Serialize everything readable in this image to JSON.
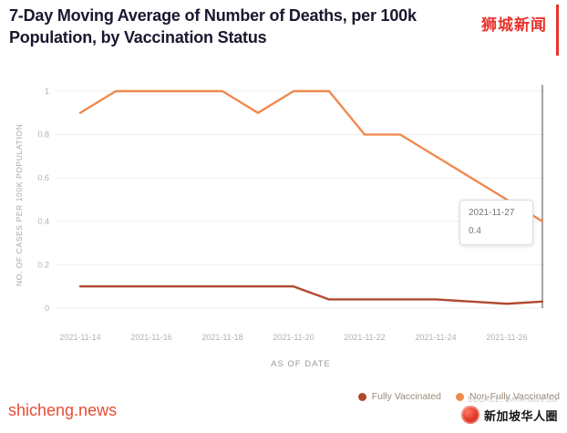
{
  "title": "7-Day Moving Average of Number of Deaths, per 100k Population, by Vaccination Status",
  "watermark": "狮城新闻",
  "chart_data": {
    "type": "line",
    "x": [
      "2021-11-14",
      "2021-11-15",
      "2021-11-16",
      "2021-11-17",
      "2021-11-18",
      "2021-11-19",
      "2021-11-20",
      "2021-11-21",
      "2021-11-22",
      "2021-11-23",
      "2021-11-24",
      "2021-11-25",
      "2021-11-26",
      "2021-11-27"
    ],
    "x_tick_labels": [
      "2021-11-14",
      "2021-11-16",
      "2021-11-18",
      "2021-11-20",
      "2021-11-22",
      "2021-11-24",
      "2021-11-26"
    ],
    "series": [
      {
        "name": "Fully Vaccinated",
        "color": "#b04a2e",
        "values": [
          0.1,
          0.1,
          0.1,
          0.1,
          0.1,
          0.1,
          0.1,
          0.04,
          0.04,
          0.04,
          0.04,
          0.03,
          0.02,
          0.03
        ]
      },
      {
        "name": "Non-Fully Vaccinated",
        "color": "#f08a50",
        "values": [
          0.9,
          1,
          1,
          1,
          1,
          0.9,
          1,
          1,
          0.8,
          0.8,
          0.7,
          0.6,
          0.5,
          0.4
        ]
      }
    ],
    "title": "7-Day Moving Average of Number of Deaths, per 100k Population, by Vaccination Status",
    "xlabel": "AS OF DATE",
    "ylabel": "NO. OF CASES PER 100K POPULATION",
    "ylim": [
      0,
      1
    ],
    "y_ticks": [
      0,
      0.2,
      0.4,
      0.6,
      0.8,
      1
    ],
    "grid": true,
    "legend_position": "bottom-right",
    "tooltip": {
      "date": "2021-11-27",
      "value": "0.4"
    }
  },
  "footer": {
    "site": "shicheng.news",
    "source": "SOURCE: DATA.GOV.SG",
    "community": "新加坡华人圈"
  }
}
